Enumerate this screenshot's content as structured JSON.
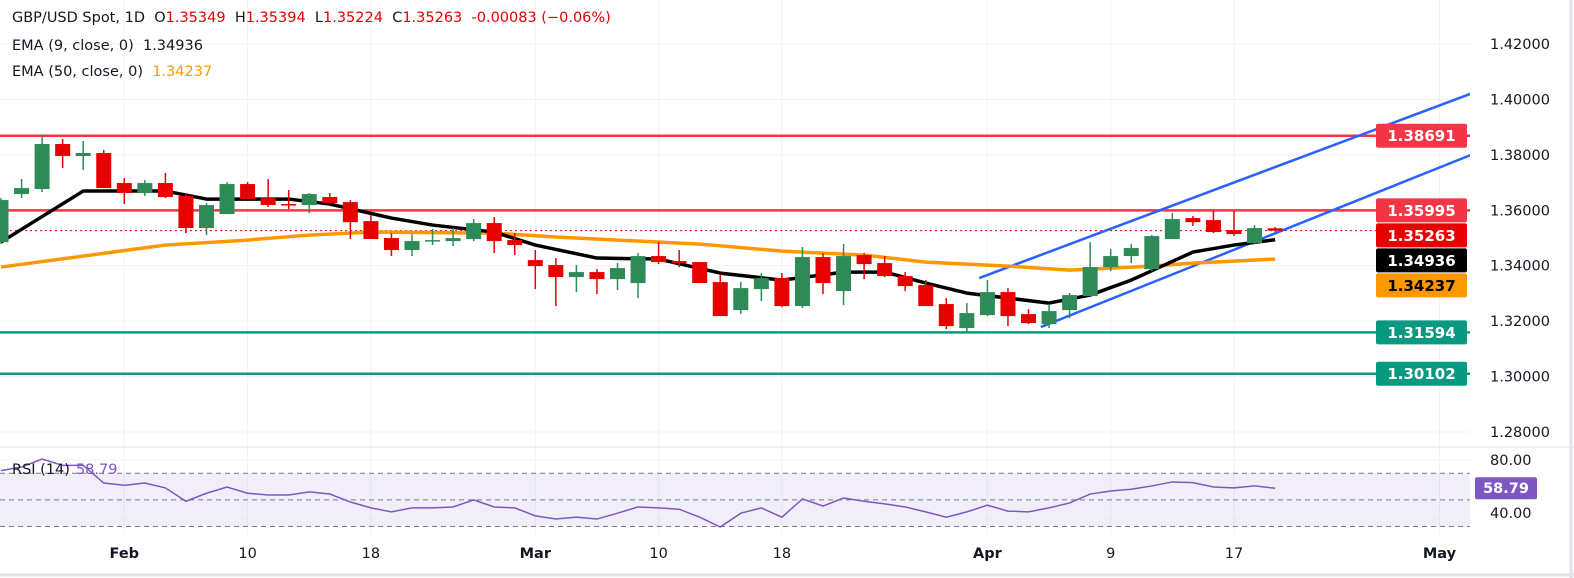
{
  "header": {
    "symbol": "GBP/USD Spot, 1D",
    "open_label": "O",
    "open": "1.35349",
    "high_label": "H",
    "high": "1.35394",
    "low_label": "L",
    "low": "1.35224",
    "close_label": "C",
    "close": "1.35263",
    "change": "-0.00083 (−0.06%)"
  },
  "indicators": [
    {
      "label": "EMA (9, close, 0)",
      "value": "1.34936",
      "color": "#000000"
    },
    {
      "label": "EMA (50, close, 0)",
      "value": "1.34237",
      "color": "#ff9800"
    }
  ],
  "rsi": {
    "label": "RSI (14)",
    "value": "58.79",
    "color": "#7e57c2"
  },
  "chart_data": {
    "type": "candlestick",
    "ylim": [
      1.27,
      1.43
    ],
    "grid": true,
    "y_ticks": [
      "1.42000",
      "1.40000",
      "1.38000",
      "1.36000",
      "1.34000",
      "1.32000",
      "1.30000",
      "1.28000"
    ],
    "x_ticks": [
      {
        "label": "Feb",
        "candle": 6,
        "bold": true
      },
      {
        "label": "10",
        "candle": 12,
        "bold": false
      },
      {
        "label": "18",
        "candle": 18,
        "bold": false
      },
      {
        "label": "Mar",
        "candle": 26,
        "bold": true
      },
      {
        "label": "10",
        "candle": 32,
        "bold": false
      },
      {
        "label": "18",
        "candle": 38,
        "bold": false
      },
      {
        "label": "Apr",
        "candle": 48,
        "bold": true
      },
      {
        "label": "9",
        "candle": 54,
        "bold": false
      },
      {
        "label": "17",
        "candle": 60,
        "bold": false
      },
      {
        "label": "May",
        "candle": 70,
        "bold": true
      }
    ],
    "ohlc_fields": [
      "open",
      "high",
      "low",
      "close"
    ],
    "candles": [
      [
        1.34852,
        1.3644,
        1.3478,
        1.36368
      ],
      [
        1.36585,
        1.37127,
        1.3644,
        1.36801
      ],
      [
        1.36765,
        1.38715,
        1.36657,
        1.3839
      ],
      [
        1.3839,
        1.38571,
        1.37524,
        1.37957
      ],
      [
        1.37957,
        1.38498,
        1.37451,
        1.38065
      ],
      [
        1.38065,
        1.38173,
        1.36801,
        1.36801
      ],
      [
        1.36982,
        1.37163,
        1.36224,
        1.36621
      ],
      [
        1.36621,
        1.3709,
        1.36513,
        1.36982
      ],
      [
        1.36982,
        1.37343,
        1.3644,
        1.36477
      ],
      [
        1.36513,
        1.36621,
        1.35177,
        1.35358
      ],
      [
        1.35358,
        1.3626,
        1.35105,
        1.36188
      ],
      [
        1.35863,
        1.37018,
        1.35863,
        1.36946
      ],
      [
        1.36946,
        1.37018,
        1.36404,
        1.36404
      ],
      [
        1.3644,
        1.37127,
        1.36116,
        1.36188
      ],
      [
        1.36224,
        1.36729,
        1.36043,
        1.36188
      ],
      [
        1.36188,
        1.36621,
        1.35899,
        1.36585
      ],
      [
        1.36477,
        1.36621,
        1.3626,
        1.3626
      ],
      [
        1.36296,
        1.36368,
        1.34961,
        1.3557
      ],
      [
        1.35608,
        1.35827,
        1.34961,
        1.34961
      ],
      [
        1.34997,
        1.35177,
        1.34347,
        1.34564
      ],
      [
        1.34564,
        1.35141,
        1.34347,
        1.34888
      ],
      [
        1.34888,
        1.35321,
        1.34744,
        1.34924
      ],
      [
        1.34888,
        1.35358,
        1.34708,
        1.34997
      ],
      [
        1.34961,
        1.35682,
        1.34888,
        1.35538
      ],
      [
        1.35538,
        1.35754,
        1.34455,
        1.34888
      ],
      [
        1.34924,
        1.35177,
        1.34383,
        1.34744
      ],
      [
        1.34202,
        1.34564,
        1.33156,
        1.33985
      ],
      [
        1.34022,
        1.34275,
        1.32542,
        1.33589
      ],
      [
        1.33589,
        1.34022,
        1.33047,
        1.33769
      ],
      [
        1.33769,
        1.33877,
        1.32975,
        1.33516
      ],
      [
        1.33516,
        1.34094,
        1.3312,
        1.33914
      ],
      [
        1.33372,
        1.34455,
        1.3283,
        1.34347
      ],
      [
        1.34347,
        1.34852,
        1.34058,
        1.3413
      ],
      [
        1.34166,
        1.34564,
        1.3395,
        1.34094
      ],
      [
        1.3413,
        1.3413,
        1.33372,
        1.33372
      ],
      [
        1.33408,
        1.33697,
        1.32181,
        1.32181
      ],
      [
        1.32397,
        1.33408,
        1.32253,
        1.33191
      ],
      [
        1.33156,
        1.33733,
        1.32722,
        1.33553
      ],
      [
        1.33553,
        1.33733,
        1.32506,
        1.32542
      ],
      [
        1.32542,
        1.34672,
        1.3247,
        1.34311
      ],
      [
        1.34311,
        1.34455,
        1.32975,
        1.33372
      ],
      [
        1.33084,
        1.3478,
        1.32578,
        1.34347
      ],
      [
        1.34383,
        1.34455,
        1.33516,
        1.34058
      ],
      [
        1.34094,
        1.34347,
        1.33589,
        1.33625
      ],
      [
        1.33625,
        1.33769,
        1.33084,
        1.33264
      ],
      [
        1.333,
        1.3348,
        1.32542,
        1.32542
      ],
      [
        1.32614,
        1.3283,
        1.31711,
        1.3182
      ],
      [
        1.31748,
        1.3265,
        1.31603,
        1.32289
      ],
      [
        1.32217,
        1.3348,
        1.32181,
        1.33047
      ],
      [
        1.33047,
        1.33191,
        1.3182,
        1.32181
      ],
      [
        1.32253,
        1.32433,
        1.31892,
        1.31928
      ],
      [
        1.31892,
        1.32614,
        1.31748,
        1.32361
      ],
      [
        1.32397,
        1.33011,
        1.32108,
        1.32939
      ],
      [
        1.32903,
        1.34852,
        1.32903,
        1.3395
      ],
      [
        1.3395,
        1.346,
        1.33805,
        1.34347
      ],
      [
        1.34347,
        1.3478,
        1.34094,
        1.34636
      ],
      [
        1.33877,
        1.35105,
        1.33805,
        1.35069
      ],
      [
        1.34961,
        1.35899,
        1.34961,
        1.35682
      ],
      [
        1.35718,
        1.3579,
        1.3543,
        1.3557
      ],
      [
        1.35646,
        1.35971,
        1.35177,
        1.35213
      ],
      [
        1.35285,
        1.35971,
        1.35069,
        1.35141
      ],
      [
        1.34816,
        1.35466,
        1.3478,
        1.35358
      ],
      [
        1.35349,
        1.35394,
        1.35224,
        1.35263
      ]
    ],
    "ema9": [
      [
        0,
        1.34852
      ],
      [
        4,
        1.36693
      ],
      [
        8,
        1.36693
      ],
      [
        10,
        1.36404
      ],
      [
        14,
        1.36404
      ],
      [
        16,
        1.36224
      ],
      [
        19,
        1.35718
      ],
      [
        21,
        1.35466
      ],
      [
        24,
        1.35213
      ],
      [
        26,
        1.34744
      ],
      [
        29,
        1.34275
      ],
      [
        32,
        1.34239
      ],
      [
        35,
        1.33733
      ],
      [
        38,
        1.3348
      ],
      [
        41,
        1.33769
      ],
      [
        43,
        1.33769
      ],
      [
        45,
        1.33372
      ],
      [
        47,
        1.33011
      ],
      [
        51,
        1.3265
      ],
      [
        53,
        1.32939
      ],
      [
        55,
        1.3348
      ],
      [
        58,
        1.34491
      ],
      [
        60,
        1.34744
      ],
      [
        62,
        1.34936
      ]
    ],
    "ema50": [
      [
        0,
        1.3395
      ],
      [
        4,
        1.34347
      ],
      [
        8,
        1.34744
      ],
      [
        12,
        1.34924
      ],
      [
        15,
        1.35105
      ],
      [
        18,
        1.35213
      ],
      [
        24,
        1.35177
      ],
      [
        27,
        1.35033
      ],
      [
        30,
        1.34924
      ],
      [
        34,
        1.3478
      ],
      [
        38,
        1.34527
      ],
      [
        42,
        1.34383
      ],
      [
        45,
        1.3413
      ],
      [
        49,
        1.33985
      ],
      [
        52,
        1.33841
      ],
      [
        56,
        1.33985
      ],
      [
        58,
        1.34094
      ],
      [
        62,
        1.34237
      ]
    ],
    "horizontal_levels": [
      {
        "price": 1.38691,
        "label": "1.38691",
        "color": "#f23645",
        "text_color": "#ffffff"
      },
      {
        "price": 1.35995,
        "label": "1.35995",
        "color": "#f23645",
        "text_color": "#ffffff"
      },
      {
        "price": 1.31594,
        "label": "1.31594",
        "color": "#089981",
        "text_color": "#ffffff"
      },
      {
        "price": 1.30102,
        "label": "1.30102",
        "color": "#089981",
        "text_color": "#ffffff"
      }
    ],
    "price_tags": [
      {
        "price": 1.35263,
        "label": "1.35263",
        "color": "#e60000",
        "text_color": "#ffffff"
      },
      {
        "price": 1.34936,
        "label": "1.34936",
        "color": "#000000",
        "text_color": "#ffffff"
      },
      {
        "price": 1.34237,
        "label": "1.34237",
        "color": "#ff9800",
        "text_color": "#000000"
      }
    ],
    "channel": {
      "color": "#2962ff",
      "upper": [
        [
          47.6,
          1.33553
        ],
        [
          72,
          1.40339
        ]
      ],
      "lower": [
        [
          50.6,
          1.31784
        ],
        [
          72,
          1.38137
        ]
      ]
    },
    "rsi_pane": {
      "ylim": [
        20,
        90
      ],
      "y_ticks": [
        "80.00",
        "40.00"
      ],
      "band": [
        30,
        70
      ],
      "middle": 50,
      "values": [
        72,
        74.7,
        80.7,
        76,
        76,
        62.7,
        61,
        62.7,
        59,
        49,
        55,
        59.7,
        55,
        53.7,
        53.7,
        56,
        54.4,
        48.4,
        44,
        41,
        44,
        44,
        44.7,
        50,
        44.7,
        44,
        38,
        35.6,
        37,
        35.6,
        40,
        44.7,
        44,
        43,
        37,
        29.6,
        40,
        44,
        37,
        50.7,
        45.4,
        51.4,
        49,
        47,
        44.7,
        41,
        37,
        41,
        46,
        41.6,
        41,
        44,
        47.7,
        54.4,
        56.7,
        58,
        60.5,
        63.5,
        63,
        59.7,
        59,
        60.5,
        58.79
      ]
    },
    "colors": {
      "up": "#2e8b57",
      "down": "#e60000",
      "ema9": "#000000",
      "ema50": "#ff9800",
      "rsi": "#7e57c2"
    }
  }
}
